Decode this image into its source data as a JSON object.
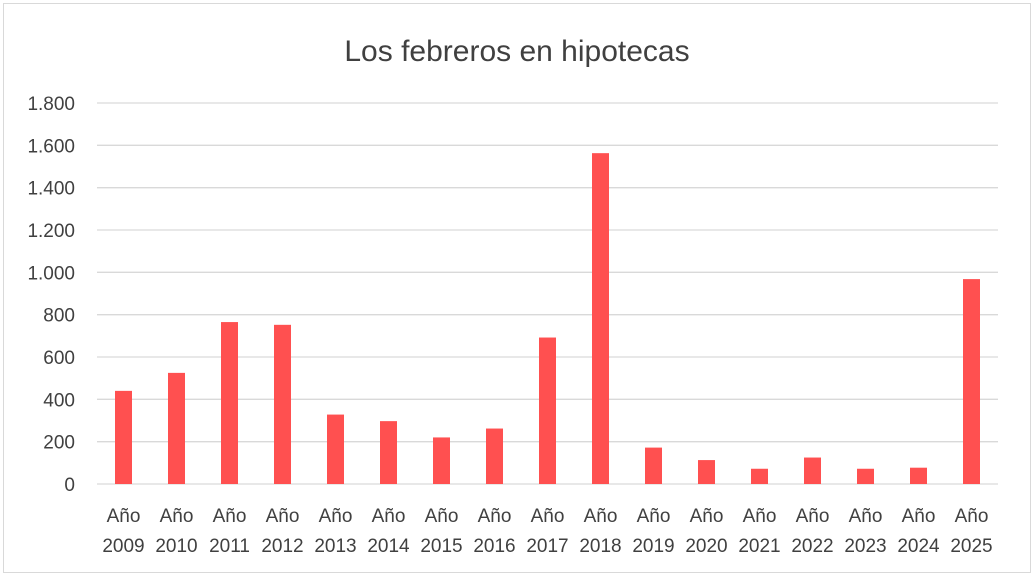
{
  "chart_data": {
    "type": "bar",
    "title": "Los febreros en hipotecas",
    "xlabel": "",
    "ylabel": "",
    "categories": [
      [
        "Año",
        "2009"
      ],
      [
        "Año",
        "2010"
      ],
      [
        "Año",
        "2011"
      ],
      [
        "Año",
        "2012"
      ],
      [
        "Año",
        "2013"
      ],
      [
        "Año",
        "2014"
      ],
      [
        "Año",
        "2015"
      ],
      [
        "Año",
        "2016"
      ],
      [
        "Año",
        "2017"
      ],
      [
        "Año",
        "2018"
      ],
      [
        "Año",
        "2019"
      ],
      [
        "Año",
        "2020"
      ],
      [
        "Año",
        "2021"
      ],
      [
        "Año",
        "2022"
      ],
      [
        "Año",
        "2023"
      ],
      [
        "Año",
        "2024"
      ],
      [
        "Año",
        "2025"
      ]
    ],
    "values": [
      440,
      525,
      765,
      752,
      328,
      297,
      220,
      262,
      692,
      1563,
      172,
      113,
      72,
      125,
      72,
      77,
      968
    ],
    "ylim": [
      0,
      1800
    ],
    "yticks": [
      0,
      200,
      400,
      600,
      800,
      1000,
      1200,
      1400,
      1600,
      1800
    ],
    "ytick_labels": [
      "0",
      "200",
      "400",
      "600",
      "800",
      "1.000",
      "1.200",
      "1.400",
      "1.600",
      "1.800"
    ],
    "grid": true,
    "legend": "none",
    "bar_color": "#ff5050",
    "grid_color": "#d9d9d9",
    "text_color": "#404040"
  }
}
